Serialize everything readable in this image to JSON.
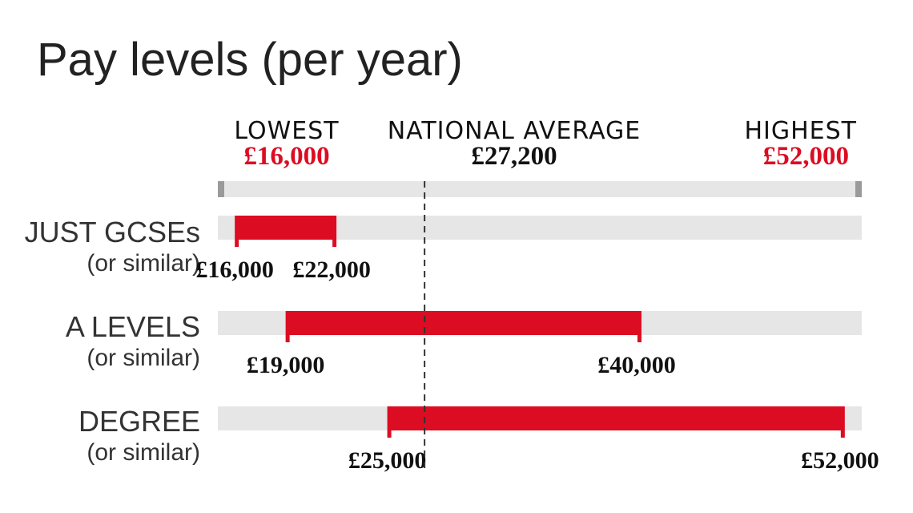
{
  "colors": {
    "accent": "#dc0c22",
    "track": "#e6e6e6",
    "scale_end": "#9a9a9a",
    "text": "#111111"
  },
  "chart_data": {
    "type": "bar",
    "subtype": "range",
    "title": "Pay levels (per year)",
    "xlim": [
      15000,
      53000
    ],
    "reference_line": {
      "label": "NATIONAL AVERAGE",
      "value": 27200,
      "value_label": "£27,200",
      "style": "dashed"
    },
    "scale_labels": {
      "lowest": {
        "label": "LOWEST",
        "value": 16000,
        "value_label": "£16,000"
      },
      "highest": {
        "label": "HIGHEST",
        "value": 52000,
        "value_label": "£52,000"
      }
    },
    "categories": [
      {
        "name": "JUST GCSEs",
        "sub": "(or similar)",
        "low": 16000,
        "high": 22000,
        "low_label": "£16,000",
        "high_label": "£22,000"
      },
      {
        "name": "A LEVELS",
        "sub": "(or similar)",
        "low": 19000,
        "high": 40000,
        "low_label": "£19,000",
        "high_label": "£40,000"
      },
      {
        "name": "DEGREE",
        "sub": "(or similar)",
        "low": 25000,
        "high": 52000,
        "low_label": "£25,000",
        "high_label": "£52,000"
      }
    ]
  }
}
